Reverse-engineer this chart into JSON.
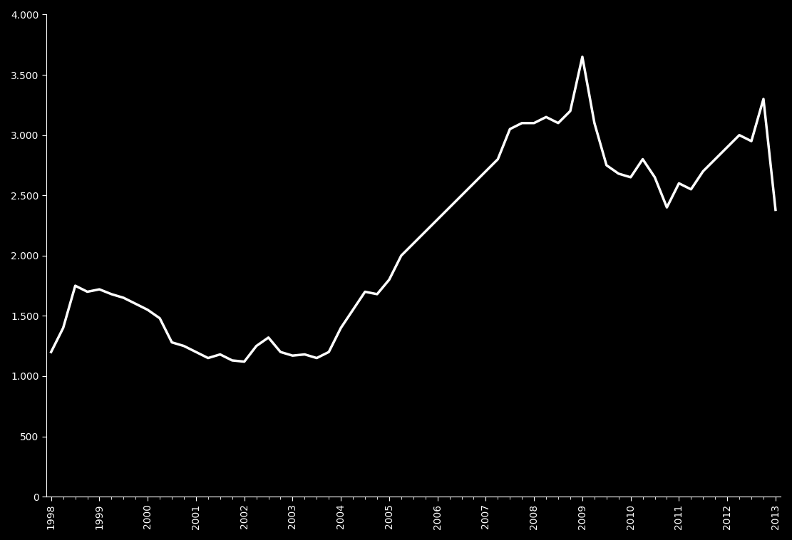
{
  "title": "",
  "background_color": "#000000",
  "line_color": "#ffffff",
  "line_width": 2.5,
  "ylim": [
    0,
    4000
  ],
  "yticks": [
    0,
    500,
    1000,
    1500,
    2000,
    2500,
    3000,
    3500,
    4000
  ],
  "xlabel_color": "#ffffff",
  "ylabel_color": "#ffffff",
  "tick_color": "#ffffff",
  "spine_color": "#ffffff",
  "x_labels": [
    "1998",
    "1999",
    "2000",
    "2001",
    "2002",
    "2003",
    "2004",
    "2005",
    "2006",
    "2007",
    "2008",
    "2009",
    "2010",
    "2011",
    "2012",
    "2013"
  ],
  "values": [
    1200,
    1400,
    1750,
    1700,
    1720,
    1680,
    1650,
    1600,
    1550,
    1480,
    1280,
    1250,
    1200,
    1150,
    1180,
    1130,
    1120,
    1250,
    1320,
    1200,
    1170,
    1180,
    1150,
    1200,
    1400,
    1550,
    1700,
    1680,
    1800,
    2000,
    2100,
    2200,
    2300,
    2400,
    2500,
    2600,
    2700,
    2800,
    3050,
    3100,
    3100,
    3150,
    3100,
    3200,
    3650,
    3100,
    2750,
    2680,
    2650,
    2800,
    2650,
    2400,
    2600,
    2550,
    2700,
    2800,
    2900,
    3000,
    2950,
    3300,
    2380
  ],
  "n_quarters": 61
}
